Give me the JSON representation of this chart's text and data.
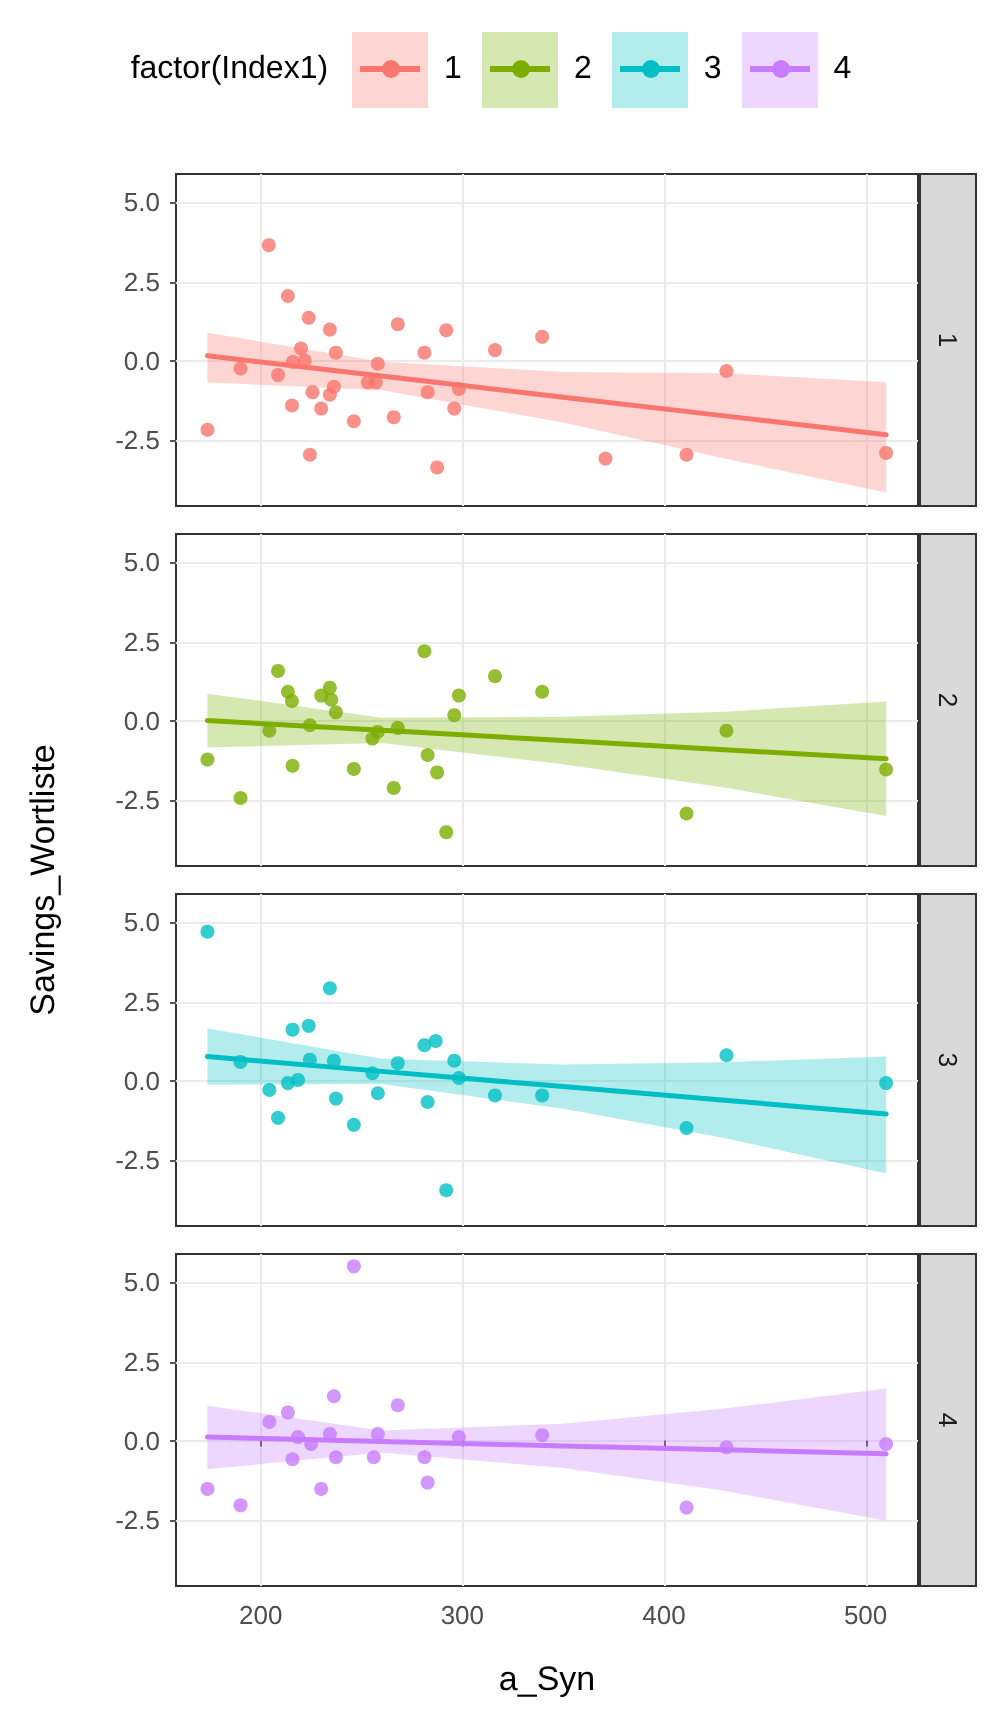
{
  "chart_data": [
    {
      "type": "scatter",
      "annotations": [
        "1"
      ],
      "legend_title": "factor(Index1)",
      "legend": "top",
      "marker": "circle",
      "grid": true,
      "tick_labels": "y",
      "xlim": [
        158,
        526
      ],
      "xticks": [
        200,
        300,
        400,
        500
      ],
      "ylim": [
        -4.6,
        5.9
      ],
      "yticks": [
        {
          "value": -2.5,
          "label": "-2.5"
        },
        {
          "value": 0,
          "label": "0.0"
        },
        {
          "value": 2.5,
          "label": "2.5"
        },
        {
          "value": 5,
          "label": "5.0"
        }
      ],
      "series": [
        {
          "name": "1",
          "color": "#f8766d",
          "x": [
            173.6,
            190,
            204,
            213.5,
            208.6,
            215.5,
            223.8,
            220,
            221.8,
            216,
            225.7,
            224.4,
            230,
            234.3,
            237.3,
            236.3,
            234.3,
            246.2,
            253.1,
            258.1,
            257.1,
            266,
            268,
            281.2,
            282.8,
            287.5,
            292,
            296,
            298.3,
            316.2,
            339.6,
            371,
            411.2,
            431,
            510.2
          ],
          "values": [
            -2.19,
            -0.25,
            3.65,
            2.04,
            -0.46,
            -1.42,
            1.35,
            0.38,
            0,
            -0.04,
            -1.0,
            -2.98,
            -1.52,
            0.98,
            0.25,
            -0.83,
            -1.08,
            -1.92,
            -0.69,
            -0.1,
            -0.69,
            -1.79,
            1.15,
            0.25,
            -1.0,
            -3.38,
            0.96,
            -1.52,
            -0.9,
            0.33,
            0.75,
            -3.1,
            -2.98,
            -0.33,
            -2.92
          ]
        },
        {
          "type": "line",
          "color": "#f8766d",
          "marker": "none",
          "x": [
            173.6,
            260,
            350,
            430,
            510.2
          ],
          "values": [
            0.15,
            -0.49,
            -1.16,
            -1.75,
            -2.35
          ],
          "lower": [
            -0.69,
            -0.94,
            -1.96,
            -3.1,
            -4.17
          ],
          "upper": [
            0.88,
            -0.04,
            -0.36,
            -0.4,
            -0.69
          ]
        }
      ]
    },
    {
      "type": "scatter",
      "annotations": [
        "2"
      ],
      "legend": "top",
      "marker": "circle",
      "grid": true,
      "tick_labels": "y",
      "xlim": [
        158,
        526
      ],
      "xticks": [
        200,
        300,
        400,
        500
      ],
      "ylim": [
        -4.6,
        5.9
      ],
      "yticks": [
        {
          "value": -2.5,
          "label": "-2.5"
        },
        {
          "value": 0,
          "label": "0.0"
        },
        {
          "value": 2.5,
          "label": "2.5"
        },
        {
          "value": 5,
          "label": "5.0"
        }
      ],
      "series": [
        {
          "name": "2",
          "color": "#7cae00",
          "x": [
            173.6,
            190,
            204.3,
            208.6,
            213.5,
            215.5,
            215.8,
            224.4,
            230,
            234.3,
            235,
            237.3,
            246.2,
            255.4,
            258.1,
            266,
            268,
            281.2,
            282.8,
            287.5,
            292,
            296,
            298.3,
            316.2,
            339.6,
            411.2,
            431,
            510.2
          ],
          "values": [
            -1.23,
            -2.45,
            -0.32,
            1.57,
            0.91,
            0.62,
            -1.43,
            -0.15,
            0.79,
            1.04,
            0.66,
            0.26,
            -1.53,
            -0.57,
            -0.36,
            -2.13,
            -0.23,
            2.19,
            -1.09,
            -1.64,
            -3.53,
            0.17,
            0.79,
            1.4,
            0.91,
            -2.94,
            -0.32,
            -1.55
          ]
        },
        {
          "type": "line",
          "color": "#7cae00",
          "marker": "none",
          "x": [
            173.6,
            260,
            350,
            430,
            510.2
          ],
          "values": [
            0,
            -0.31,
            -0.63,
            -0.92,
            -1.21
          ],
          "lower": [
            -0.85,
            -0.71,
            -1.38,
            -2.12,
            -3.02
          ],
          "upper": [
            0.85,
            0.09,
            0.12,
            0.28,
            0.6
          ]
        }
      ]
    },
    {
      "type": "scatter",
      "annotations": [
        "3"
      ],
      "ylabel": "Savings_Wortliste",
      "legend": "top",
      "marker": "circle",
      "grid": true,
      "tick_labels": "y",
      "xlim": [
        158,
        526
      ],
      "xticks": [
        200,
        300,
        400,
        500
      ],
      "ylim": [
        -4.6,
        5.9
      ],
      "yticks": [
        {
          "value": -2.5,
          "label": "-2.5"
        },
        {
          "value": 0,
          "label": "0.0"
        },
        {
          "value": 2.5,
          "label": "2.5"
        },
        {
          "value": 5,
          "label": "5.0"
        }
      ],
      "series": [
        {
          "name": "3",
          "color": "#00bfc4",
          "x": [
            173.6,
            190,
            204.3,
            208.6,
            213.5,
            215.8,
            218.5,
            223.8,
            224.4,
            234.3,
            236.3,
            237.3,
            246.2,
            255.4,
            258.1,
            268,
            281.2,
            286.8,
            282.8,
            292,
            296,
            298.3,
            316.2,
            339.6,
            411.2,
            431,
            510.2
          ],
          "values": [
            4.71,
            0.59,
            -0.3,
            -1.18,
            -0.08,
            1.61,
            0.02,
            1.73,
            0.66,
            2.92,
            0.63,
            -0.57,
            -1.4,
            0.23,
            -0.4,
            0.55,
            1.12,
            1.25,
            -0.68,
            -3.47,
            0.63,
            0.08,
            -0.47,
            -0.47,
            -1.5,
            0.8,
            -0.08
          ]
        },
        {
          "type": "line",
          "color": "#00bfc4",
          "marker": "none",
          "x": [
            173.6,
            260,
            350,
            430,
            510.2
          ],
          "values": [
            0.76,
            0.29,
            -0.19,
            -0.62,
            -1.06
          ],
          "lower": [
            -0.13,
            -0.11,
            -0.89,
            -1.82,
            -2.94
          ],
          "upper": [
            1.65,
            0.69,
            0.51,
            0.58,
            0.76
          ]
        }
      ]
    },
    {
      "type": "scatter",
      "annotations": [
        "4"
      ],
      "xlabel": "a_Syn",
      "legend": "top",
      "marker": "circle",
      "grid": true,
      "xlim": [
        158,
        526
      ],
      "xticks": [
        200,
        300,
        400,
        500
      ],
      "ylim": [
        -4.6,
        5.9
      ],
      "yticks": [
        {
          "value": -2.5,
          "label": "-2.5"
        },
        {
          "value": 0,
          "label": "0.0"
        },
        {
          "value": 2.5,
          "label": "2.5"
        },
        {
          "value": 5,
          "label": "5.0"
        }
      ],
      "series": [
        {
          "name": "4",
          "color": "#c77cff",
          "x": [
            173.6,
            190,
            204.3,
            213.5,
            215.8,
            218.5,
            225,
            230,
            234.3,
            236.3,
            237.3,
            246.2,
            256.1,
            258.1,
            268,
            281.2,
            282.8,
            298.3,
            339.6,
            411.2,
            431,
            510.2
          ],
          "values": [
            -1.53,
            -2.05,
            0.59,
            0.89,
            -0.59,
            0.11,
            -0.11,
            -1.53,
            0.21,
            1.4,
            -0.53,
            5.51,
            -0.53,
            0.21,
            1.12,
            -0.53,
            -1.33,
            0.11,
            0.17,
            -2.12,
            -0.21,
            -0.11
          ]
        },
        {
          "type": "line",
          "color": "#c77cff",
          "marker": "none",
          "x": [
            173.6,
            260,
            350,
            430,
            510.2
          ],
          "values": [
            0.11,
            -0.03,
            -0.17,
            -0.29,
            -0.42
          ],
          "lower": [
            -0.91,
            -0.38,
            -0.87,
            -1.59,
            -2.54
          ],
          "upper": [
            1.1,
            0.32,
            0.53,
            1.01,
            1.65
          ]
        }
      ]
    }
  ]
}
